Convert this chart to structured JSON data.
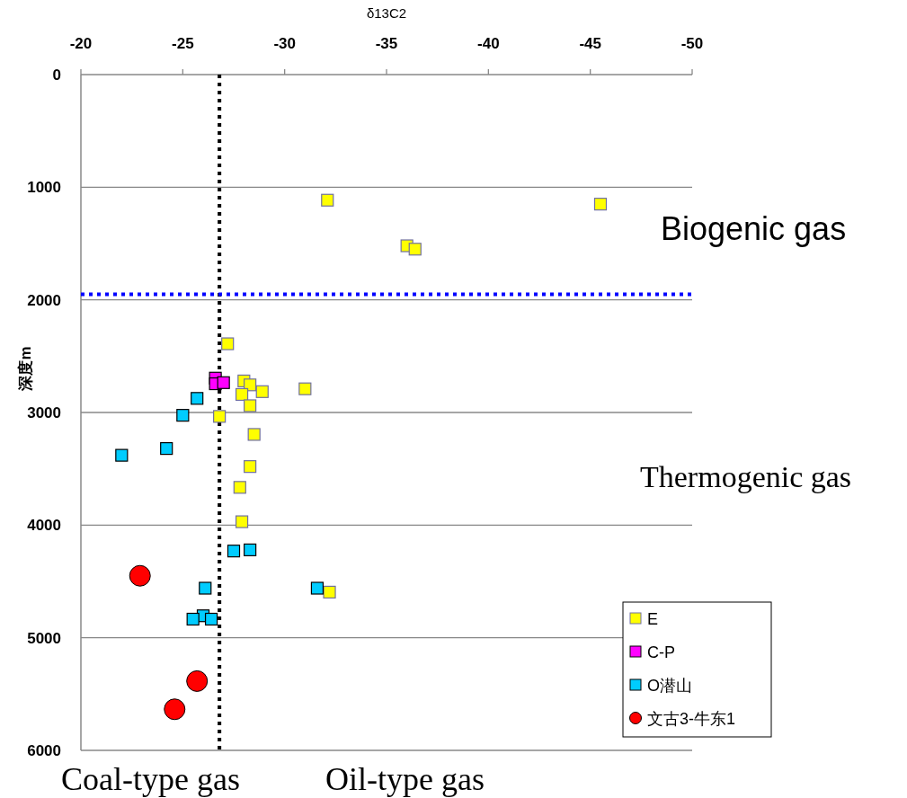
{
  "chart_data": {
    "type": "scatter",
    "xlabel": "δ13C2",
    "ylabel": "深度m",
    "xlim": [
      -20,
      -50
    ],
    "xticks": [
      -20,
      -25,
      -30,
      -35,
      -40,
      -45,
      -50
    ],
    "ylim": [
      6000,
      0
    ],
    "yticks": [
      0,
      1000,
      2000,
      3000,
      4000,
      5000,
      6000
    ],
    "grid": "y",
    "legend": "bottom right",
    "series": [
      {
        "name": "E",
        "color": "#ffff00",
        "marker": "square",
        "x": [
          -27.2,
          -28.0,
          -28.3,
          -28.9,
          -27.9,
          -28.3,
          -31.0,
          -26.8,
          -28.5,
          -28.3,
          -27.8,
          -27.9,
          -32.2,
          -32.1,
          -45.5,
          -36.0,
          -36.4
        ],
        "values": [
          2390,
          2720,
          2755,
          2815,
          2840,
          2940,
          2790,
          3035,
          3195,
          3480,
          3665,
          3970,
          4595,
          1115,
          1150,
          1520,
          1550
        ]
      },
      {
        "name": "C-P",
        "color": "#ff00ff",
        "marker": "square",
        "x": [
          -26.6,
          -26.6,
          -27.0
        ],
        "values": [
          2695,
          2745,
          2735
        ]
      },
      {
        "name": "O潜山",
        "color": "#00ccff",
        "marker": "square",
        "x": [
          -25.7,
          -25.0,
          -24.2,
          -22.0,
          -27.5,
          -28.3,
          -26.1,
          -31.6,
          -26.0,
          -25.5,
          -26.4
        ],
        "values": [
          2875,
          3025,
          3320,
          3380,
          4230,
          4220,
          4560,
          4560,
          4805,
          4835,
          4835
        ]
      },
      {
        "name": "文古3-牛东1",
        "color": "#ff0000",
        "marker": "circle",
        "x": [
          -22.9,
          -25.7,
          -24.6
        ],
        "values": [
          4450,
          5385,
          5635
        ]
      }
    ],
    "ref_lines": [
      {
        "axis": "x",
        "value": -26.8,
        "color": "#000000",
        "line_style": "dotted"
      },
      {
        "axis": "y",
        "value": 1950,
        "color": "#0000ff",
        "line_style": "dotted"
      }
    ],
    "annotations": [
      "Biogenic gas",
      "Thermogenic gas",
      "Coal-type gas",
      "Oil-type gas"
    ]
  }
}
